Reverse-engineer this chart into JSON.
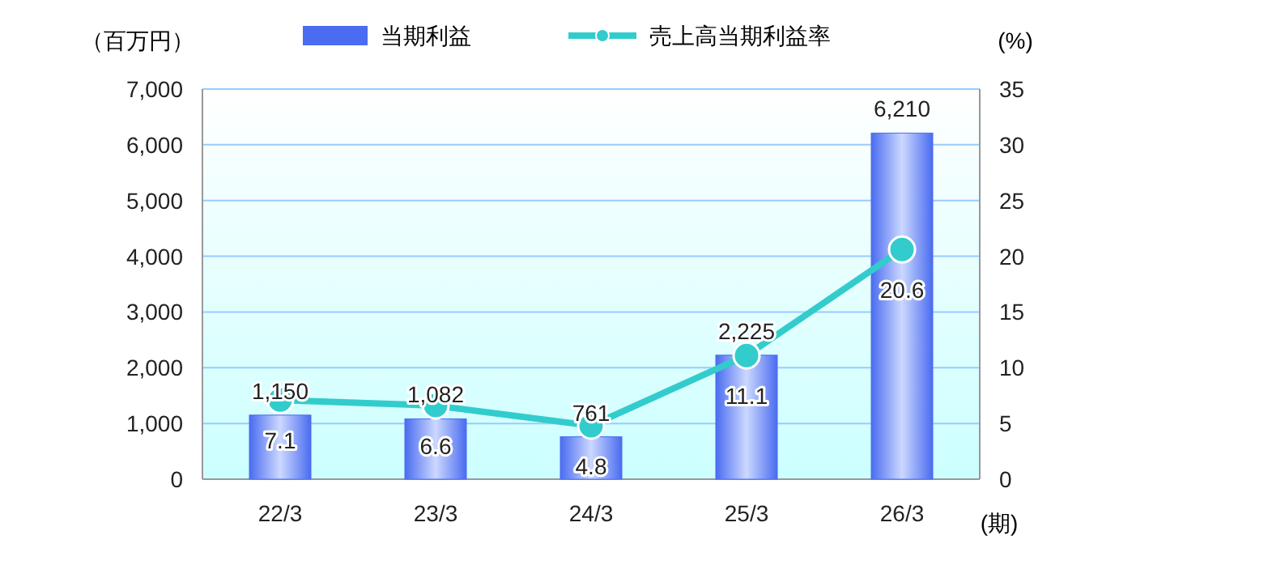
{
  "chart_data": {
    "type": "bar",
    "ylabel": "（百万円）",
    "y2label": "(%)",
    "xlabel": "(期)",
    "categories": [
      "22/3",
      "23/3",
      "24/3",
      "25/3",
      "26/3"
    ],
    "series": [
      {
        "name": "当期利益",
        "color": "#4a6cf0",
        "values": [
          1150,
          1082,
          761,
          2225,
          6210
        ],
        "value_labels": [
          "1,150",
          "1,082",
          "761",
          "2,225",
          "6,210"
        ]
      },
      {
        "name": "売上高当期利益率",
        "type": "line",
        "axis": "y2",
        "color": "#33cccc",
        "values": [
          7.1,
          6.6,
          4.8,
          11.1,
          20.6
        ]
      }
    ],
    "ylim": [
      0,
      7000
    ],
    "yticks": [
      0,
      {
        "value": 1000,
        "label": "1,000"
      },
      {
        "value": 2000,
        "label": "2,000"
      },
      {
        "value": 3000,
        "label": "3,000"
      },
      {
        "value": 4000,
        "label": "4,000"
      },
      {
        "value": 5000,
        "label": "5,000"
      },
      {
        "value": 6000,
        "label": "6,000"
      },
      {
        "value": 7000,
        "label": "7,000"
      }
    ],
    "y2lim": [
      0,
      35
    ],
    "y2ticks": [
      0,
      5,
      10,
      15,
      20,
      25,
      30,
      35
    ],
    "grid": "y",
    "legend": "top",
    "marker": "circle",
    "data_labels": true
  }
}
